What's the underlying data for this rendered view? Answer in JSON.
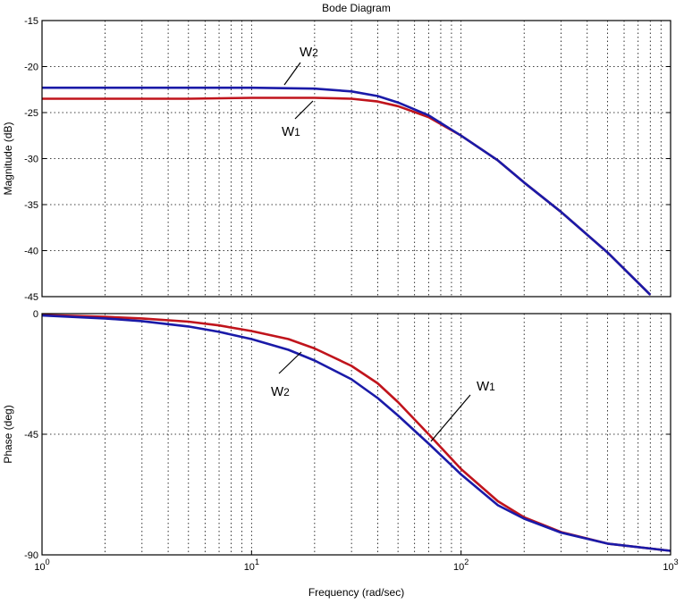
{
  "chart_data": {
    "type": "line",
    "title": "Bode Diagram",
    "xlabel": "Frequency  (rad/sec)",
    "xscale": "log",
    "xlim": [
      1,
      1000
    ],
    "x_tick_labels": [
      "10^0",
      "10^1",
      "10^2",
      "10^3"
    ],
    "x_ticks": [
      1,
      10,
      100,
      1000
    ],
    "grid": true,
    "colors": {
      "W1": "#c0141c",
      "W2": "#1a1aa8"
    },
    "panels": [
      {
        "name": "magnitude",
        "ylabel": "Magnitude (dB)",
        "ylim": [
          -45,
          -15
        ],
        "y_ticks": [
          -15,
          -20,
          -25,
          -30,
          -35,
          -40,
          -45
        ],
        "series": [
          {
            "name": "W1",
            "x": [
              1,
              5,
              10,
              20,
              30,
              40,
              50,
              70,
              100,
              150,
              200,
              300,
              500,
              800
            ],
            "values": [
              -23.5,
              -23.5,
              -23.4,
              -23.4,
              -23.5,
              -23.8,
              -24.3,
              -25.5,
              -27.5,
              -30.2,
              -32.6,
              -35.8,
              -40.2,
              -44.8
            ]
          },
          {
            "name": "W2",
            "x": [
              1,
              5,
              10,
              20,
              30,
              40,
              50,
              70,
              100,
              150,
              200,
              300,
              500,
              800
            ],
            "values": [
              -22.3,
              -22.3,
              -22.3,
              -22.4,
              -22.7,
              -23.2,
              -23.9,
              -25.3,
              -27.5,
              -30.2,
              -32.6,
              -35.8,
              -40.2,
              -44.8
            ]
          }
        ]
      },
      {
        "name": "phase",
        "ylabel": "Phase (deg)",
        "ylim": [
          -90,
          0
        ],
        "y_ticks": [
          0,
          -45,
          -90
        ],
        "series": [
          {
            "name": "W1",
            "x": [
              1,
              2,
              3,
              5,
              7,
              10,
              15,
              20,
              30,
              40,
              50,
              70,
              100,
              150,
              200,
              300,
              500,
              1000
            ],
            "values": [
              -0.5,
              -1.2,
              -1.8,
              -3.0,
              -4.4,
              -6.5,
              -9.5,
              -13,
              -19.5,
              -26,
              -33,
              -45,
              -58,
              -70,
              -76,
              -81.5,
              -85.8,
              -88.5
            ]
          },
          {
            "name": "W2",
            "x": [
              1,
              2,
              3,
              5,
              7,
              10,
              15,
              20,
              30,
              40,
              50,
              70,
              100,
              150,
              200,
              300,
              500,
              1000
            ],
            "values": [
              -0.7,
              -1.8,
              -2.8,
              -4.8,
              -6.8,
              -9.5,
              -13.5,
              -17.5,
              -24.5,
              -31.5,
              -38,
              -48.5,
              -60,
              -71.5,
              -76.5,
              -81.7,
              -85.8,
              -88.5
            ]
          }
        ]
      }
    ],
    "annotations": [
      {
        "panel": "magnitude",
        "label": "W2"
      },
      {
        "panel": "magnitude",
        "label": "W1"
      },
      {
        "panel": "phase",
        "label": "W2"
      },
      {
        "panel": "phase",
        "label": "W1"
      }
    ]
  }
}
